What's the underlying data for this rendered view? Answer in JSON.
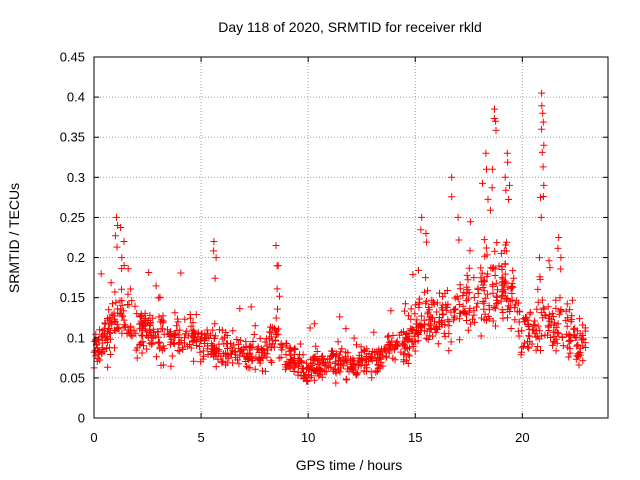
{
  "chart_data": {
    "type": "scatter",
    "title": "Day 118 of 2020, SRMTID for receiver rkld",
    "xlabel": "GPS time / hours",
    "ylabel": "SRMTID / TECUs",
    "xlim": [
      0,
      24
    ],
    "ylim": [
      0,
      0.45
    ],
    "xticks": [
      0,
      5,
      10,
      15,
      20
    ],
    "xtick_labels": [
      "0",
      "5",
      "10",
      "15",
      "20"
    ],
    "yticks": [
      0,
      0.05,
      0.1,
      0.15,
      0.2,
      0.25,
      0.3,
      0.35,
      0.4,
      0.45
    ],
    "ytick_labels": [
      "0",
      "0.05",
      "0.1",
      "0.15",
      "0.2",
      "0.25",
      "0.3",
      "0.35",
      "0.4",
      "0.45"
    ],
    "grid": true,
    "marker": "+",
    "color": "#ff0000",
    "trend": [
      {
        "x": 0.0,
        "y": 0.08
      },
      {
        "x": 0.5,
        "y": 0.1
      },
      {
        "x": 1.0,
        "y": 0.13
      },
      {
        "x": 1.5,
        "y": 0.12
      },
      {
        "x": 2.0,
        "y": 0.11
      },
      {
        "x": 3.0,
        "y": 0.1
      },
      {
        "x": 4.0,
        "y": 0.1
      },
      {
        "x": 5.0,
        "y": 0.095
      },
      {
        "x": 6.0,
        "y": 0.09
      },
      {
        "x": 7.0,
        "y": 0.08
      },
      {
        "x": 8.0,
        "y": 0.08
      },
      {
        "x": 8.5,
        "y": 0.1
      },
      {
        "x": 9.0,
        "y": 0.075
      },
      {
        "x": 10.0,
        "y": 0.06
      },
      {
        "x": 11.0,
        "y": 0.065
      },
      {
        "x": 12.0,
        "y": 0.065
      },
      {
        "x": 13.0,
        "y": 0.07
      },
      {
        "x": 14.0,
        "y": 0.085
      },
      {
        "x": 15.0,
        "y": 0.11
      },
      {
        "x": 16.0,
        "y": 0.12
      },
      {
        "x": 17.0,
        "y": 0.13
      },
      {
        "x": 18.0,
        "y": 0.15
      },
      {
        "x": 18.8,
        "y": 0.17
      },
      {
        "x": 19.5,
        "y": 0.16
      },
      {
        "x": 20.0,
        "y": 0.1
      },
      {
        "x": 21.0,
        "y": 0.12
      },
      {
        "x": 22.0,
        "y": 0.11
      },
      {
        "x": 23.0,
        "y": 0.09
      }
    ],
    "peaks": [
      {
        "x": 1.05,
        "y": 0.25
      },
      {
        "x": 1.1,
        "y": 0.24
      },
      {
        "x": 1.4,
        "y": 0.22
      },
      {
        "x": 1.3,
        "y": 0.2
      },
      {
        "x": 5.6,
        "y": 0.22
      },
      {
        "x": 5.7,
        "y": 0.2
      },
      {
        "x": 8.5,
        "y": 0.215
      },
      {
        "x": 8.6,
        "y": 0.19
      },
      {
        "x": 15.3,
        "y": 0.25
      },
      {
        "x": 15.5,
        "y": 0.23
      },
      {
        "x": 16.7,
        "y": 0.3
      },
      {
        "x": 17.0,
        "y": 0.25
      },
      {
        "x": 18.3,
        "y": 0.33
      },
      {
        "x": 18.7,
        "y": 0.385
      },
      {
        "x": 18.75,
        "y": 0.37
      },
      {
        "x": 18.6,
        "y": 0.31
      },
      {
        "x": 19.3,
        "y": 0.33
      },
      {
        "x": 19.2,
        "y": 0.3
      },
      {
        "x": 19.4,
        "y": 0.29
      },
      {
        "x": 20.9,
        "y": 0.405
      },
      {
        "x": 20.95,
        "y": 0.38
      },
      {
        "x": 20.9,
        "y": 0.36
      },
      {
        "x": 21.0,
        "y": 0.34
      },
      {
        "x": 21.0,
        "y": 0.29
      },
      {
        "x": 20.85,
        "y": 0.275
      },
      {
        "x": 21.7,
        "y": 0.225
      },
      {
        "x": 21.8,
        "y": 0.2
      },
      {
        "x": 20.8,
        "y": 0.2
      }
    ],
    "point_count": 1200,
    "seed": 11820
  }
}
